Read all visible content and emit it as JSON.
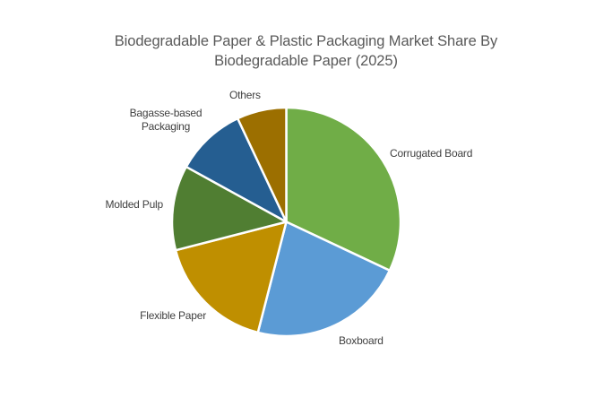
{
  "title": {
    "line1": "Biodegradable Paper & Plastic Packaging Market Share By",
    "line2": "Biodegradable Paper (2025)"
  },
  "chart_data": {
    "type": "pie",
    "title": "Biodegradable Paper & Plastic Packaging Market Share By Biodegradable Paper (2025)",
    "categories": [
      "Corrugated Board",
      "Boxboard",
      "Flexible Paper",
      "Molded Pulp",
      "Bagasse-based Packaging",
      "Others"
    ],
    "values": [
      32,
      22,
      17,
      12,
      10,
      7
    ],
    "values_unit": "percent (estimated from slice angles; no data labels shown)",
    "colors": [
      "#70AD47",
      "#5B9BD5",
      "#BF8F00",
      "#507E32",
      "#255E91",
      "#9C6F00"
    ],
    "start_angle_deg": 0,
    "direction": "clockwise",
    "legend_position": "none",
    "label_style": "category labels outside slices",
    "slice_border_color": "#FFFFFF",
    "title_color": "#595959",
    "label_color": "#404040",
    "background_color": "#FFFFFF"
  }
}
